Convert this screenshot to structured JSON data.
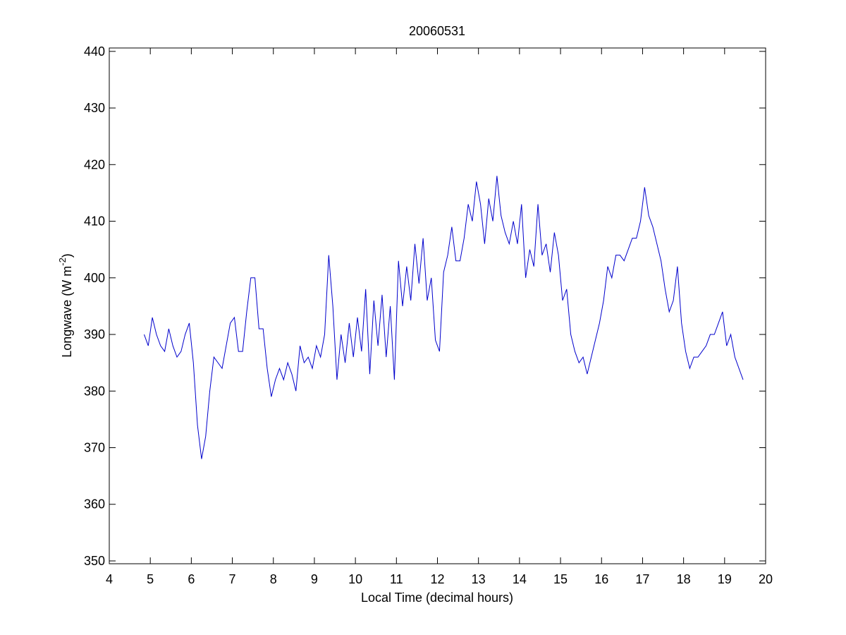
{
  "chart_data": {
    "type": "line",
    "title": "20060531",
    "xlabel": "Local Time (decimal hours)",
    "ylabel": [
      "Longwave (W m",
      "-2",
      ")"
    ],
    "xlim": [
      4,
      20
    ],
    "xticks": [
      4,
      5,
      6,
      7,
      8,
      9,
      10,
      11,
      12,
      13,
      14,
      15,
      16,
      17,
      18,
      19,
      20
    ],
    "ylim": [
      349.5,
      440.6
    ],
    "yticks": [
      350,
      360,
      370,
      380,
      390,
      400,
      410,
      420,
      430,
      440
    ],
    "x": [
      4.85,
      4.95,
      5.05,
      5.15,
      5.25,
      5.35,
      5.45,
      5.55,
      5.65,
      5.75,
      5.85,
      5.95,
      6.05,
      6.15,
      6.25,
      6.35,
      6.45,
      6.55,
      6.65,
      6.75,
      6.85,
      6.95,
      7.05,
      7.15,
      7.25,
      7.35,
      7.45,
      7.55,
      7.65,
      7.75,
      7.85,
      7.95,
      8.05,
      8.15,
      8.25,
      8.35,
      8.45,
      8.55,
      8.65,
      8.75,
      8.85,
      8.95,
      9.05,
      9.15,
      9.25,
      9.35,
      9.45,
      9.55,
      9.65,
      9.75,
      9.85,
      9.95,
      10.05,
      10.15,
      10.25,
      10.35,
      10.45,
      10.55,
      10.65,
      10.75,
      10.85,
      10.95,
      11.05,
      11.15,
      11.25,
      11.35,
      11.45,
      11.55,
      11.65,
      11.75,
      11.85,
      11.95,
      12.05,
      12.15,
      12.25,
      12.35,
      12.45,
      12.55,
      12.65,
      12.75,
      12.85,
      12.95,
      13.05,
      13.15,
      13.25,
      13.35,
      13.45,
      13.55,
      13.65,
      13.75,
      13.85,
      13.95,
      14.05,
      14.15,
      14.25,
      14.35,
      14.45,
      14.55,
      14.65,
      14.75,
      14.85,
      14.95,
      15.05,
      15.15,
      15.25,
      15.35,
      15.45,
      15.55,
      15.65,
      15.75,
      15.85,
      15.95,
      16.05,
      16.15,
      16.25,
      16.35,
      16.45,
      16.55,
      16.65,
      16.75,
      16.85,
      16.95,
      17.05,
      17.15,
      17.25,
      17.35,
      17.45,
      17.55,
      17.65,
      17.75,
      17.85,
      17.95,
      18.05,
      18.15,
      18.25,
      18.35,
      18.45,
      18.55,
      18.65,
      18.75,
      18.85,
      18.95,
      19.05,
      19.15,
      19.25,
      19.35,
      19.45
    ],
    "series": [
      {
        "color": "#0000cc",
        "values": [
          390,
          388,
          393,
          390,
          388,
          387,
          391,
          388,
          386,
          387,
          390,
          392,
          385,
          374,
          368,
          372,
          380,
          386,
          385,
          384,
          388,
          392,
          393,
          387,
          387,
          394,
          400,
          400,
          391,
          391,
          384,
          379,
          382,
          384,
          382,
          385,
          383,
          380,
          388,
          385,
          386,
          384,
          388,
          386,
          390,
          404,
          395,
          382,
          390,
          385,
          392,
          386,
          393,
          387,
          398,
          383,
          396,
          388,
          397,
          386,
          395,
          382,
          403,
          395,
          402,
          396,
          406,
          399,
          407,
          396,
          400,
          389,
          387,
          401,
          404,
          409,
          403,
          403,
          407,
          413,
          410,
          417,
          413,
          406,
          414,
          410,
          418,
          411,
          408,
          406,
          410,
          406,
          413,
          400,
          405,
          402,
          413,
          404,
          406,
          401,
          408,
          404,
          396,
          398,
          390,
          387,
          385,
          386,
          383,
          386,
          389,
          392,
          396,
          402,
          400,
          404,
          404,
          403,
          405,
          407,
          407,
          410,
          416,
          411,
          409,
          406,
          403,
          398,
          394,
          396,
          402,
          392,
          387,
          384,
          386,
          386,
          387,
          388,
          390,
          390,
          392,
          394,
          388,
          390,
          386,
          384,
          382
        ]
      }
    ]
  }
}
